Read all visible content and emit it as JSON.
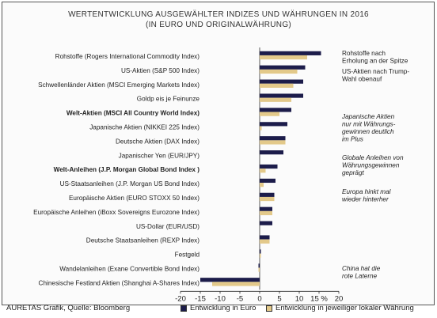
{
  "chart_data": {
    "type": "bar",
    "orientation": "horizontal",
    "title": "WERTENTWICKLUNG AUSGEWÄHLTER INDIZES UND WÄHRUNGEN IN 2016",
    "subtitle": "(IN EURO UND ORIGINALWÄHRUNG)",
    "categories": [
      "Rohstoffe (Rogers International Commodity Index)",
      "US-Aktien (S&P 500 Index)",
      "Schwellenländer Aktien (MSCI Emerging Markets Index)",
      "Goldp eis je Feinunze",
      "Welt-Aktien (MSCI All Country World Index)",
      "Japanische Aktien (NIKKEI 225 Index)",
      "Deutsche Aktien (DAX Index)",
      "Japanischer Yen (EUR/JPY)",
      "Welt-Anleihen (J.P. Morgan Global Bond Index )",
      "US-Staatsanleihen (J.P. Morgan US Bond Index)",
      "Europäische Aktien (EURO STOXX 50 Index)",
      "Europäische Anleihen (iBoxx Sovereigns Eurozone Index)",
      "US-Dollar (EUR/USD)",
      "Deutsche Staatsanleihen (REXP Index)",
      "Festgeld",
      "Wandelanleihen (Exane Convertible Bond Index)",
      "Chinesische Festland Aktien (Shanghai A-Shares Index)"
    ],
    "bold_categories": [
      "Welt-Aktien (MSCI All Country World Index)",
      "Welt-Anleihen (J.P. Morgan Global Bond Index )"
    ],
    "series": [
      {
        "name": "Entwicklung in Euro",
        "color": "#1c1c4a",
        "values": [
          15.5,
          11.5,
          11.0,
          11.0,
          8.0,
          7.0,
          6.5,
          6.0,
          4.5,
          4.0,
          3.7,
          3.2,
          3.2,
          2.5,
          0.0,
          -0.3,
          -15.0
        ]
      },
      {
        "name": "Entwicklung in jeweiliger lokaler Währung",
        "color": "#e3c98a",
        "values": [
          12.0,
          9.5,
          8.5,
          8.0,
          5.0,
          0.5,
          6.5,
          null,
          1.5,
          1.0,
          3.7,
          3.2,
          null,
          2.5,
          0.0,
          -0.3,
          -12.0
        ]
      }
    ],
    "xlim": [
      -20,
      20
    ],
    "x_ticks": [
      "-20",
      "-15",
      "-10",
      "-5",
      "0",
      "5",
      "10",
      "15 %",
      "20"
    ],
    "grid": false,
    "legend_position": "bottom",
    "annotations": [
      "Rohstoffe nach Erholung an der Spitze",
      "US-Aktien nach Trump-Wahl obenauf",
      "Japanische Aktien nur mit Währungs-gewinnen deutlich im Plus",
      "Globale Anleihen von Währungsgewinnen geprägt",
      "Europa hinkt mal wieder hinterher",
      "China hat die rote Laterne"
    ],
    "source": "AURETAS Grafik, Quelle: Bloomberg"
  }
}
